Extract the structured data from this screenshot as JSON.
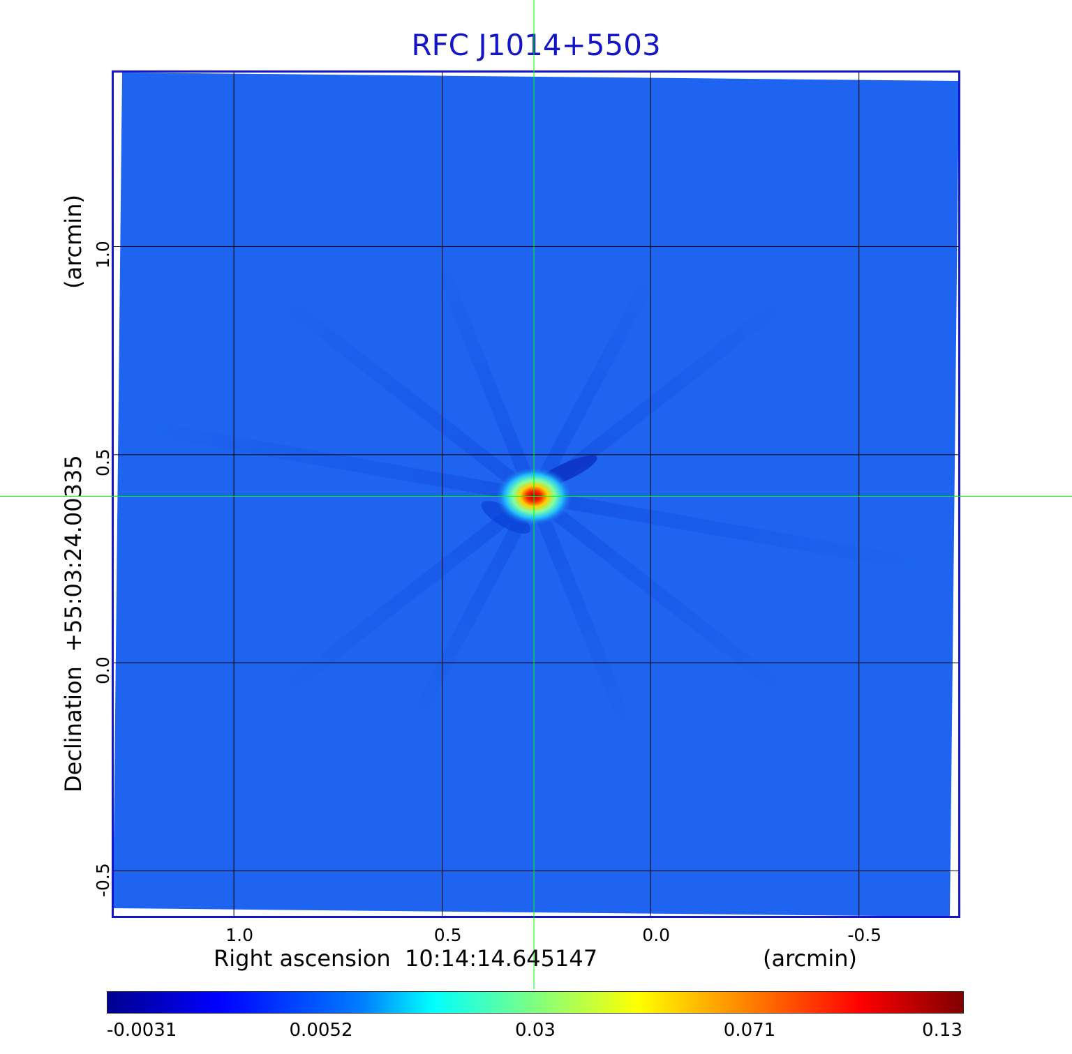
{
  "chart_data": {
    "type": "heatmap",
    "title": "RFC J1014+5503",
    "xlabel": "Right ascension  10:14:14.645147",
    "xunits": "(arcmin)",
    "ylabel": "Declination  +55:03:24.00335",
    "yunits": "(arcmin)",
    "x_ticks": [
      "1.0",
      "0.5",
      "0.0",
      "-0.5"
    ],
    "x_tick_values": [
      1.0,
      0.5,
      0.0,
      -0.5
    ],
    "y_ticks": [
      "1.0",
      "0.5",
      "0.0",
      "-0.5"
    ],
    "y_tick_values": [
      1.0,
      0.5,
      0.0,
      -0.5
    ],
    "xlim": [
      1.29,
      -0.74
    ],
    "ylim": [
      -0.61,
      1.42
    ],
    "crosshair": {
      "x": 0.28,
      "y": 0.4
    },
    "source_peak": {
      "x": 0.28,
      "y": 0.4,
      "value": 0.13
    },
    "grid": true,
    "colorbar": {
      "ticks": [
        "-0.0031",
        "0.0052",
        "0.03",
        "0.071",
        "0.13"
      ],
      "colormap": "jet"
    },
    "colors": {
      "background_field": "#1e64f0",
      "frame": "#1414c8",
      "grid": "#000000",
      "crosshair": "#00ff00",
      "title": "#1414c8"
    }
  }
}
